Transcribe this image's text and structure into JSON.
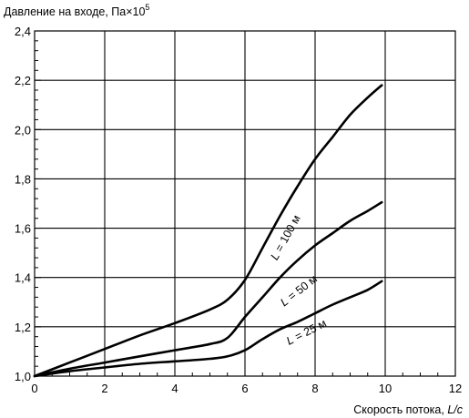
{
  "chart_data": {
    "type": "line",
    "ylabel_text": "Давление на входе, Па×10",
    "ylabel_sup": "5",
    "xlabel_text": "Скорость потока, ",
    "xlabel_unit": "L/c",
    "xlim": [
      0,
      12
    ],
    "ylim": [
      1.0,
      2.4
    ],
    "x_ticks": [
      "0",
      "2",
      "4",
      "6",
      "8",
      "10",
      "12"
    ],
    "y_ticks": [
      "1,0",
      "1,2",
      "1,4",
      "1,6",
      "1,8",
      "2,0",
      "2,2",
      "2,4"
    ],
    "grid": true,
    "series": [
      {
        "name_var": "L",
        "name_rest": " = 100 м",
        "x": [
          0,
          1,
          2,
          3,
          4,
          5,
          5.5,
          6,
          6.5,
          7,
          7.5,
          8,
          8.5,
          9,
          9.5,
          9.9
        ],
        "y": [
          1.0,
          1.055,
          1.11,
          1.165,
          1.215,
          1.27,
          1.31,
          1.39,
          1.52,
          1.65,
          1.77,
          1.88,
          1.97,
          2.06,
          2.13,
          2.18
        ]
      },
      {
        "name_var": "L",
        "name_rest": " = 50 м",
        "x": [
          0,
          1,
          2,
          3,
          4,
          5,
          5.5,
          6,
          6.5,
          7,
          7.5,
          8,
          8.5,
          9,
          9.5,
          9.9
        ],
        "y": [
          1.0,
          1.03,
          1.055,
          1.08,
          1.105,
          1.13,
          1.155,
          1.24,
          1.32,
          1.4,
          1.47,
          1.53,
          1.58,
          1.63,
          1.67,
          1.705
        ]
      },
      {
        "name_var": "L",
        "name_rest": " = 25 м",
        "x": [
          0,
          1,
          2,
          3,
          4,
          5,
          5.5,
          6,
          6.5,
          7,
          7.5,
          8,
          8.5,
          9,
          9.5,
          9.9
        ],
        "y": [
          1.0,
          1.02,
          1.035,
          1.05,
          1.06,
          1.07,
          1.08,
          1.105,
          1.15,
          1.19,
          1.22,
          1.255,
          1.29,
          1.32,
          1.35,
          1.385
        ]
      }
    ]
  }
}
